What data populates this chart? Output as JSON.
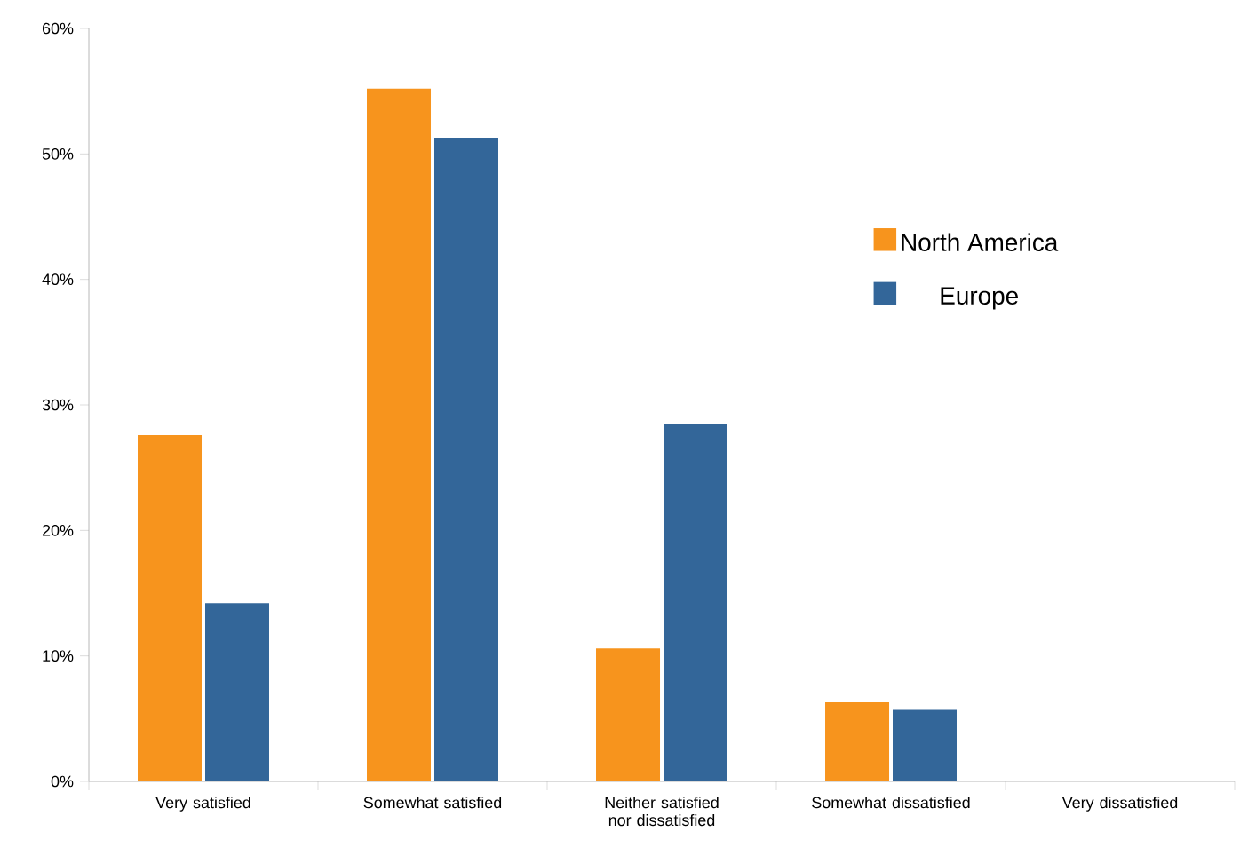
{
  "chart_data": {
    "type": "bar",
    "categories": [
      "Very satisfied",
      "Somewhat satisfied",
      "Neither satisfied nor dissatisfied",
      "Somewhat dissatisfied",
      "Very dissatisfied"
    ],
    "series": [
      {
        "name": "North America",
        "color": "#f7941d",
        "values": [
          27.6,
          55.2,
          10.6,
          6.3,
          0
        ]
      },
      {
        "name": "Europe",
        "color": "#336699",
        "values": [
          14.2,
          51.3,
          28.5,
          5.7,
          0
        ]
      }
    ],
    "ylim": [
      0,
      60
    ],
    "yticks": [
      {
        "value": 0,
        "label": "0%"
      },
      {
        "value": 10,
        "label": "10%"
      },
      {
        "value": 20,
        "label": "20%"
      },
      {
        "value": 30,
        "label": "30%"
      },
      {
        "value": 40,
        "label": "40%"
      },
      {
        "value": 50,
        "label": "50%"
      },
      {
        "value": 60,
        "label": "60%"
      }
    ],
    "grid": false,
    "legend": "right"
  }
}
